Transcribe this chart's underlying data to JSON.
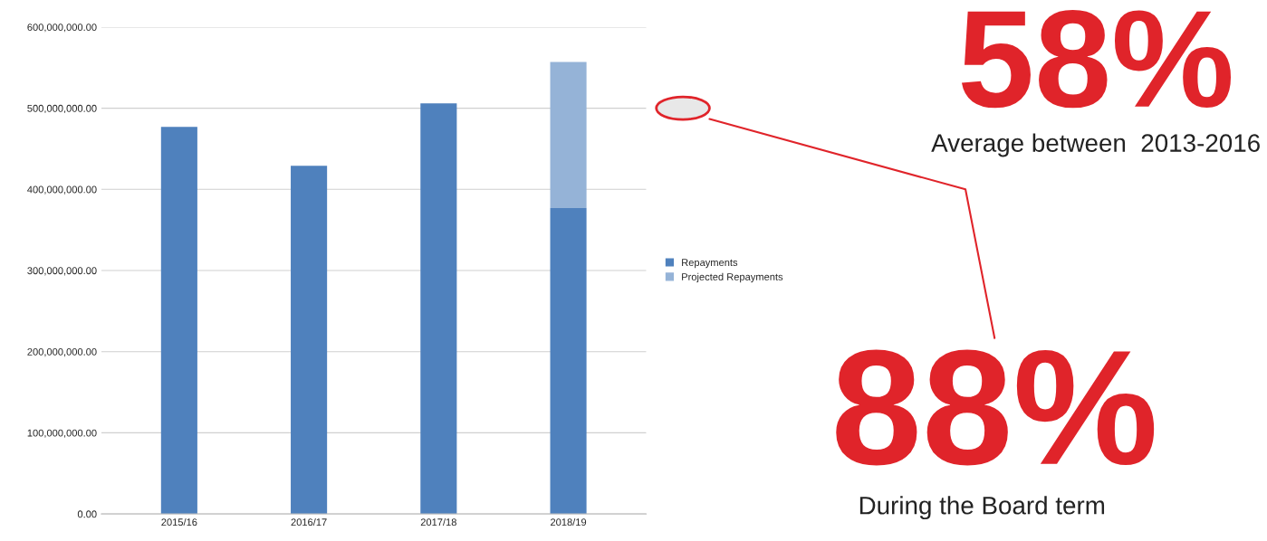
{
  "chart_data": {
    "type": "bar",
    "stacked": true,
    "categories": [
      "2015/16",
      "2016/17",
      "2017/18",
      "2018/19"
    ],
    "series": [
      {
        "name": "Repayments",
        "color": "#4f81bd",
        "values": [
          477000000,
          429000000,
          506000000,
          377000000
        ]
      },
      {
        "name": "Projected Repayments",
        "color": "#95b3d7",
        "values": [
          null,
          null,
          null,
          180000000
        ]
      }
    ],
    "ylim": [
      0,
      600000000
    ],
    "yticks": [
      {
        "value": 0,
        "label": "0.00"
      },
      {
        "value": 100000000,
        "label": "100,000,000.00"
      },
      {
        "value": 200000000,
        "label": "200,000,000.00"
      },
      {
        "value": 300000000,
        "label": "300,000,000.00"
      },
      {
        "value": 400000000,
        "label": "400,000,000.00"
      },
      {
        "value": 500000000,
        "label": "500,000,000.00"
      },
      {
        "value": 600000000,
        "label": "600,000,000.00"
      }
    ],
    "grid": "y",
    "legend": "right",
    "annotations": [
      "58%",
      "Average between  2013-2016",
      "88%",
      "During the Board term"
    ]
  }
}
